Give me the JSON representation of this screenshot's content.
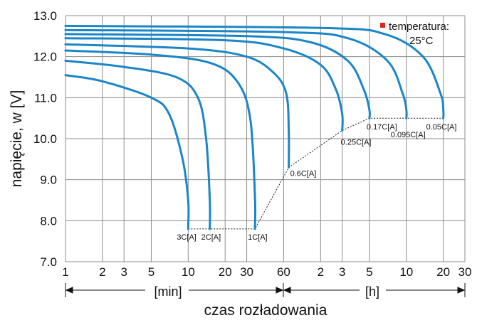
{
  "chart_data": {
    "type": "line",
    "ylabel": "napięcie, w [V]",
    "xlabel": "czas rozładowania",
    "ylim": [
      7.0,
      13.0
    ],
    "y_ticks": [
      "7.0",
      "8.0",
      "9.0",
      "10.0",
      "11.0",
      "12.0",
      "13.0"
    ],
    "x_scale": "log",
    "x_ticks": [
      "1",
      "2",
      "3",
      "5",
      "10",
      "20",
      "30",
      "60",
      "2",
      "3",
      "5",
      "10",
      "20",
      "30"
    ],
    "x_unit_left": "[min]",
    "x_unit_right": "[h]",
    "grid": true,
    "legend_label": "temperatura:",
    "legend_value": "25°C",
    "legend_color": "#e0261c",
    "line_color": "#1a86c7",
    "series": [
      {
        "name": "3C[A]",
        "x_min": [
          1,
          2,
          5,
          7,
          9,
          10,
          10
        ],
        "y": [
          11.55,
          11.4,
          11.0,
          10.6,
          9.5,
          8.5,
          7.8
        ]
      },
      {
        "name": "2C[A]",
        "x_min": [
          1,
          3,
          8,
          12,
          14,
          15,
          15
        ],
        "y": [
          11.9,
          11.75,
          11.5,
          11.0,
          10.0,
          8.5,
          7.8
        ]
      },
      {
        "name": "1C[A]",
        "x_min": [
          1,
          5,
          15,
          25,
          32,
          35,
          35
        ],
        "y": [
          12.15,
          12.05,
          11.85,
          11.4,
          10.5,
          8.6,
          7.8
        ]
      },
      {
        "name": "0.6C[A]",
        "x_min": [
          1,
          10,
          30,
          50,
          63,
          66,
          66
        ],
        "y": [
          12.3,
          12.2,
          12.0,
          11.6,
          11.1,
          10.2,
          9.3
        ]
      },
      {
        "name": "0.25C[A]",
        "x_min": [
          1,
          20,
          60,
          120,
          160,
          180,
          180
        ],
        "y": [
          12.45,
          12.4,
          12.2,
          11.8,
          11.2,
          10.6,
          10.2
        ]
      },
      {
        "name": "0.17C[A]",
        "x_min": [
          1,
          30,
          100,
          200,
          270,
          300,
          300
        ],
        "y": [
          12.55,
          12.5,
          12.35,
          11.9,
          11.2,
          10.7,
          10.5
        ]
      },
      {
        "name": "0.095C[A]",
        "x_min": [
          1,
          60,
          200,
          420,
          560,
          600,
          600
        ],
        "y": [
          12.65,
          12.6,
          12.45,
          11.9,
          11.1,
          10.7,
          10.5
        ]
      },
      {
        "name": "0.05C[A]",
        "x_min": [
          1,
          120,
          400,
          820,
          1140,
          1200,
          1200
        ],
        "y": [
          12.75,
          12.7,
          12.55,
          12.0,
          11.1,
          10.7,
          10.5
        ]
      }
    ],
    "end_voltage_path": {
      "x_min": [
        10,
        35,
        66,
        180,
        300,
        600,
        1200
      ],
      "y": [
        7.8,
        7.8,
        9.3,
        10.2,
        10.5,
        10.5,
        10.5
      ]
    }
  }
}
